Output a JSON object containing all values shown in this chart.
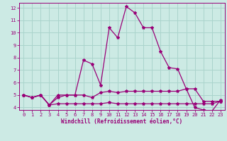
{
  "xlabel": "Windchill (Refroidissement éolien,°C)",
  "background_color": "#cceae4",
  "grid_color": "#aad4cc",
  "line_color": "#990077",
  "xlim": [
    -0.5,
    23.5
  ],
  "ylim": [
    3.8,
    12.4
  ],
  "yticks": [
    4,
    5,
    6,
    7,
    8,
    9,
    10,
    11,
    12
  ],
  "xticks": [
    0,
    1,
    2,
    3,
    4,
    5,
    6,
    7,
    8,
    9,
    10,
    11,
    12,
    13,
    14,
    15,
    16,
    17,
    18,
    19,
    20,
    21,
    22,
    23
  ],
  "series1_x": [
    0,
    1,
    2,
    3,
    4,
    5,
    6,
    7,
    8,
    9,
    10,
    11,
    12,
    13,
    14,
    15,
    16,
    17,
    18,
    19,
    20,
    21,
    22,
    23
  ],
  "series1_y": [
    5.0,
    4.8,
    5.0,
    4.2,
    5.0,
    5.0,
    5.0,
    7.8,
    7.5,
    5.8,
    10.4,
    9.6,
    12.1,
    11.6,
    10.4,
    10.4,
    8.5,
    7.2,
    7.1,
    5.5,
    4.0,
    3.8,
    3.7,
    4.6
  ],
  "series2_x": [
    0,
    1,
    2,
    3,
    4,
    5,
    6,
    7,
    8,
    9,
    10,
    11,
    12,
    13,
    14,
    15,
    16,
    17,
    18,
    19,
    20,
    21,
    22,
    23
  ],
  "series2_y": [
    5.0,
    4.8,
    5.0,
    4.2,
    4.8,
    5.0,
    5.0,
    5.0,
    4.8,
    5.2,
    5.3,
    5.2,
    5.3,
    5.3,
    5.3,
    5.3,
    5.3,
    5.3,
    5.3,
    5.5,
    5.5,
    4.5,
    4.5,
    4.5
  ],
  "series3_x": [
    0,
    1,
    2,
    3,
    4,
    5,
    6,
    7,
    8,
    9,
    10,
    11,
    12,
    13,
    14,
    15,
    16,
    17,
    18,
    19,
    20,
    21,
    22,
    23
  ],
  "series3_y": [
    5.0,
    4.8,
    5.0,
    4.2,
    4.3,
    4.3,
    4.3,
    4.3,
    4.3,
    4.3,
    4.4,
    4.3,
    4.3,
    4.3,
    4.3,
    4.3,
    4.3,
    4.3,
    4.3,
    4.3,
    4.3,
    4.3,
    4.3,
    4.5
  ],
  "tick_fontsize": 5.0,
  "xlabel_fontsize": 5.5,
  "marker_size": 3.0,
  "line_width": 0.9
}
